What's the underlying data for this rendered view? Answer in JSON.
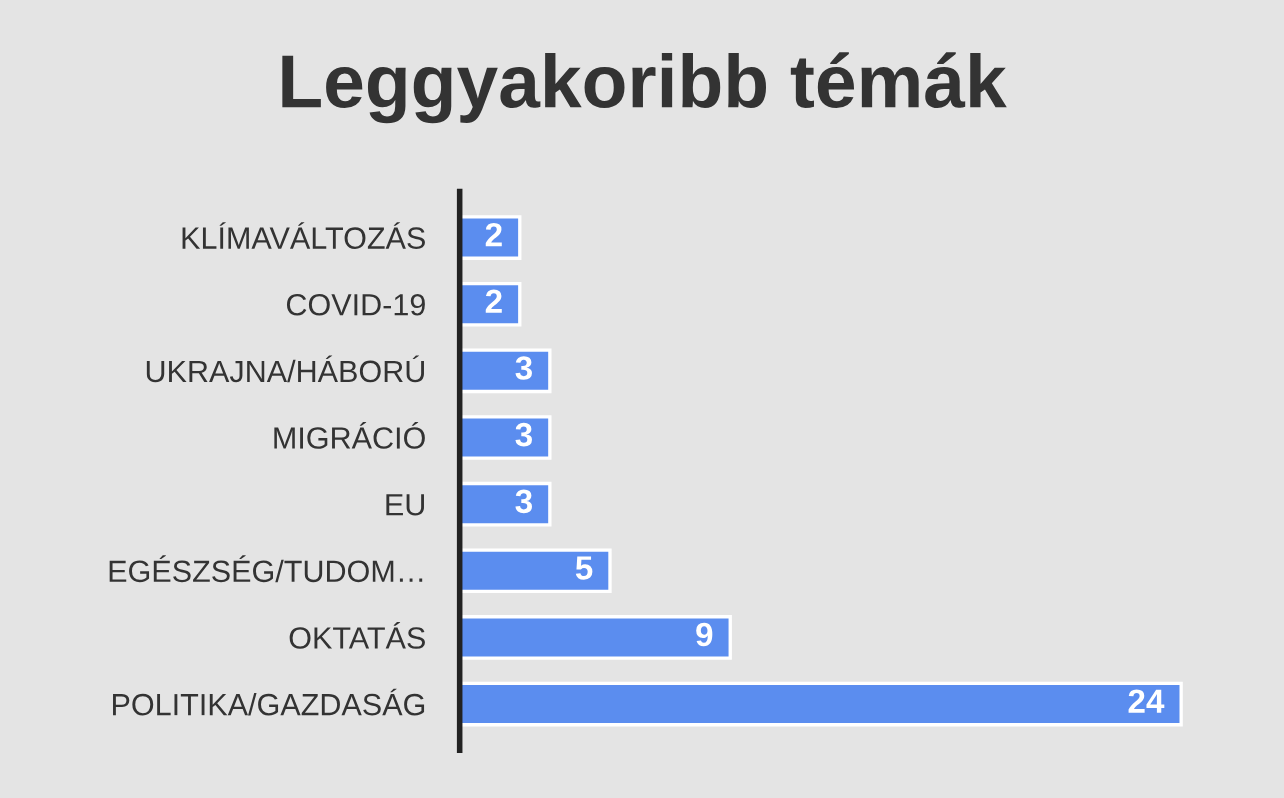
{
  "chart_data": {
    "type": "bar",
    "orientation": "horizontal",
    "title": "Leggyakoribb témák",
    "categories": [
      "KLÍMAVÁLTOZÁS",
      "COVID-19",
      "UKRAJNA/HÁBORÚ",
      "MIGRÁCIÓ",
      "EU",
      "EGÉSZSÉG/TUDOM…",
      "OKTATÁS",
      "POLITIKA/GAZDASÁG"
    ],
    "values": [
      2,
      2,
      3,
      3,
      3,
      5,
      9,
      24
    ],
    "color": "#5b8def",
    "data_labels": true
  }
}
